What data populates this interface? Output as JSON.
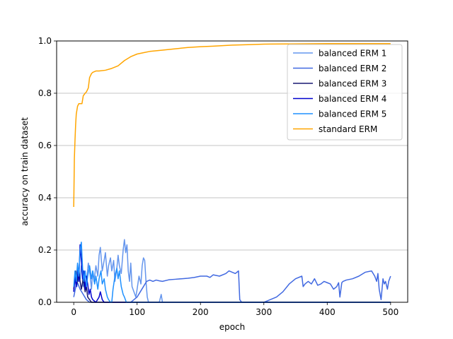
{
  "chart_data": {
    "type": "line",
    "xlabel": "epoch",
    "ylabel": "accuracy on train dataset",
    "xlim": [
      -27,
      527
    ],
    "ylim": [
      0,
      1.0
    ],
    "xticks": [
      0,
      100,
      200,
      300,
      400,
      500
    ],
    "yticks": [
      0.0,
      0.2,
      0.4,
      0.6,
      0.8,
      1.0
    ],
    "ytick_labels": [
      "0.0",
      "0.2",
      "0.4",
      "0.6",
      "0.8",
      "1.0"
    ],
    "grid": "y",
    "legend_position": "top-right",
    "series": [
      {
        "name": "balanced ERM 1",
        "color": "#6495ed",
        "points": [
          [
            0,
            0.04
          ],
          [
            3,
            0.1
          ],
          [
            5,
            0.06
          ],
          [
            8,
            0.12
          ],
          [
            10,
            0.09
          ],
          [
            12,
            0.14
          ],
          [
            15,
            0.06
          ],
          [
            18,
            0.11
          ],
          [
            20,
            0.08
          ],
          [
            23,
            0.15
          ],
          [
            26,
            0.1
          ],
          [
            28,
            0.05
          ],
          [
            30,
            0.12
          ],
          [
            32,
            0.08
          ],
          [
            35,
            0.14
          ],
          [
            38,
            0.1
          ],
          [
            40,
            0.18
          ],
          [
            42,
            0.21
          ],
          [
            45,
            0.12
          ],
          [
            48,
            0.16
          ],
          [
            50,
            0.19
          ],
          [
            53,
            0.1
          ],
          [
            55,
            0.14
          ],
          [
            58,
            0.17
          ],
          [
            60,
            0.12
          ],
          [
            63,
            0.16
          ],
          [
            65,
            0.08
          ],
          [
            68,
            0.13
          ],
          [
            70,
            0.18
          ],
          [
            72,
            0.14
          ],
          [
            75,
            0.11
          ],
          [
            78,
            0.2
          ],
          [
            80,
            0.24
          ],
          [
            82,
            0.19
          ],
          [
            84,
            0.22
          ],
          [
            86,
            0.12
          ],
          [
            88,
            0.08
          ],
          [
            90,
            0.15
          ],
          [
            92,
            0.06
          ],
          [
            95,
            0.04
          ],
          [
            98,
            0.02
          ],
          [
            100,
            0.05
          ],
          [
            103,
            0.1
          ],
          [
            106,
            0.07
          ],
          [
            108,
            0.14
          ],
          [
            110,
            0.17
          ],
          [
            112,
            0.16
          ],
          [
            114,
            0.08
          ],
          [
            116,
            0.02
          ],
          [
            118,
            0.0
          ],
          [
            125,
            0.0
          ],
          [
            130,
            0.0
          ],
          [
            135,
            0.0
          ],
          [
            138,
            0.03
          ],
          [
            140,
            0.0
          ],
          [
            500,
            0.0
          ]
        ]
      },
      {
        "name": "balanced ERM 2",
        "color": "#4169e1",
        "points": [
          [
            0,
            0.02
          ],
          [
            5,
            0.08
          ],
          [
            10,
            0.05
          ],
          [
            15,
            0.03
          ],
          [
            20,
            0.01
          ],
          [
            25,
            0.0
          ],
          [
            90,
            0.0
          ],
          [
            95,
            0.01
          ],
          [
            100,
            0.02
          ],
          [
            105,
            0.04
          ],
          [
            110,
            0.06
          ],
          [
            115,
            0.08
          ],
          [
            120,
            0.085
          ],
          [
            125,
            0.08
          ],
          [
            130,
            0.085
          ],
          [
            135,
            0.082
          ],
          [
            140,
            0.08
          ],
          [
            150,
            0.086
          ],
          [
            160,
            0.088
          ],
          [
            170,
            0.09
          ],
          [
            180,
            0.092
          ],
          [
            190,
            0.095
          ],
          [
            200,
            0.1
          ],
          [
            210,
            0.1
          ],
          [
            215,
            0.095
          ],
          [
            220,
            0.105
          ],
          [
            230,
            0.1
          ],
          [
            240,
            0.11
          ],
          [
            245,
            0.12
          ],
          [
            250,
            0.115
          ],
          [
            255,
            0.11
          ],
          [
            260,
            0.12
          ],
          [
            262,
            0.01
          ],
          [
            265,
            0.0
          ],
          [
            300,
            0.0
          ],
          [
            305,
            0.005
          ],
          [
            310,
            0.01
          ],
          [
            320,
            0.02
          ],
          [
            330,
            0.04
          ],
          [
            340,
            0.07
          ],
          [
            350,
            0.09
          ],
          [
            360,
            0.1
          ],
          [
            362,
            0.06
          ],
          [
            365,
            0.07
          ],
          [
            370,
            0.08
          ],
          [
            375,
            0.07
          ],
          [
            380,
            0.09
          ],
          [
            385,
            0.065
          ],
          [
            390,
            0.07
          ],
          [
            395,
            0.08
          ],
          [
            400,
            0.075
          ],
          [
            405,
            0.07
          ],
          [
            410,
            0.05
          ],
          [
            415,
            0.06
          ],
          [
            418,
            0.075
          ],
          [
            420,
            0.02
          ],
          [
            423,
            0.075
          ],
          [
            425,
            0.08
          ],
          [
            430,
            0.085
          ],
          [
            440,
            0.09
          ],
          [
            450,
            0.1
          ],
          [
            460,
            0.115
          ],
          [
            470,
            0.12
          ],
          [
            475,
            0.1
          ],
          [
            478,
            0.08
          ],
          [
            480,
            0.11
          ],
          [
            482,
            0.05
          ],
          [
            485,
            0.01
          ],
          [
            488,
            0.09
          ],
          [
            490,
            0.07
          ],
          [
            492,
            0.08
          ],
          [
            495,
            0.05
          ],
          [
            497,
            0.08
          ],
          [
            500,
            0.1
          ]
        ]
      },
      {
        "name": "balanced ERM 3",
        "color": "#191970",
        "points": [
          [
            0,
            0.05
          ],
          [
            3,
            0.12
          ],
          [
            5,
            0.07
          ],
          [
            8,
            0.13
          ],
          [
            10,
            0.08
          ],
          [
            12,
            0.05
          ],
          [
            15,
            0.09
          ],
          [
            18,
            0.04
          ],
          [
            20,
            0.06
          ],
          [
            22,
            0.02
          ],
          [
            25,
            0.01
          ],
          [
            28,
            0.0
          ],
          [
            500,
            0.0
          ]
        ]
      },
      {
        "name": "balanced ERM 4",
        "color": "#0000cd",
        "points": [
          [
            0,
            0.04
          ],
          [
            2,
            0.1
          ],
          [
            4,
            0.06
          ],
          [
            6,
            0.14
          ],
          [
            8,
            0.08
          ],
          [
            10,
            0.22
          ],
          [
            12,
            0.16
          ],
          [
            14,
            0.09
          ],
          [
            16,
            0.12
          ],
          [
            18,
            0.05
          ],
          [
            20,
            0.1
          ],
          [
            22,
            0.07
          ],
          [
            24,
            0.03
          ],
          [
            26,
            0.05
          ],
          [
            28,
            0.02
          ],
          [
            30,
            0.01
          ],
          [
            35,
            0.0
          ],
          [
            40,
            0.02
          ],
          [
            42,
            0.04
          ],
          [
            45,
            0.01
          ],
          [
            48,
            0.0
          ],
          [
            500,
            0.0
          ]
        ]
      },
      {
        "name": "balanced ERM 5",
        "color": "#1e90ff",
        "points": [
          [
            0,
            0.06
          ],
          [
            2,
            0.12
          ],
          [
            4,
            0.08
          ],
          [
            6,
            0.15
          ],
          [
            8,
            0.1
          ],
          [
            10,
            0.2
          ],
          [
            12,
            0.23
          ],
          [
            14,
            0.13
          ],
          [
            16,
            0.08
          ],
          [
            18,
            0.12
          ],
          [
            20,
            0.06
          ],
          [
            22,
            0.1
          ],
          [
            25,
            0.14
          ],
          [
            28,
            0.09
          ],
          [
            30,
            0.12
          ],
          [
            33,
            0.07
          ],
          [
            35,
            0.1
          ],
          [
            38,
            0.05
          ],
          [
            40,
            0.09
          ],
          [
            43,
            0.12
          ],
          [
            45,
            0.07
          ],
          [
            48,
            0.09
          ],
          [
            50,
            0.05
          ],
          [
            53,
            0.02
          ],
          [
            55,
            0.01
          ],
          [
            58,
            0.0
          ],
          [
            60,
            0.0
          ],
          [
            62,
            0.05
          ],
          [
            65,
            0.1
          ],
          [
            68,
            0.13
          ],
          [
            70,
            0.09
          ],
          [
            72,
            0.12
          ],
          [
            75,
            0.06
          ],
          [
            78,
            0.03
          ],
          [
            80,
            0.02
          ],
          [
            83,
            0.0
          ],
          [
            500,
            0.0
          ]
        ]
      },
      {
        "name": "standard ERM",
        "color": "#ffa500",
        "points": [
          [
            0,
            0.365
          ],
          [
            1,
            0.55
          ],
          [
            2,
            0.62
          ],
          [
            3,
            0.68
          ],
          [
            4,
            0.72
          ],
          [
            6,
            0.75
          ],
          [
            8,
            0.76
          ],
          [
            10,
            0.76
          ],
          [
            13,
            0.76
          ],
          [
            15,
            0.79
          ],
          [
            18,
            0.8
          ],
          [
            20,
            0.805
          ],
          [
            23,
            0.82
          ],
          [
            25,
            0.86
          ],
          [
            28,
            0.875
          ],
          [
            30,
            0.88
          ],
          [
            35,
            0.885
          ],
          [
            40,
            0.885
          ],
          [
            50,
            0.888
          ],
          [
            60,
            0.895
          ],
          [
            70,
            0.905
          ],
          [
            80,
            0.925
          ],
          [
            90,
            0.94
          ],
          [
            100,
            0.95
          ],
          [
            110,
            0.955
          ],
          [
            120,
            0.96
          ],
          [
            140,
            0.965
          ],
          [
            160,
            0.97
          ],
          [
            180,
            0.975
          ],
          [
            200,
            0.978
          ],
          [
            220,
            0.98
          ],
          [
            250,
            0.984
          ],
          [
            280,
            0.986
          ],
          [
            300,
            0.988
          ],
          [
            350,
            0.989
          ],
          [
            400,
            0.99
          ],
          [
            450,
            0.99
          ],
          [
            500,
            0.99
          ]
        ]
      }
    ]
  }
}
